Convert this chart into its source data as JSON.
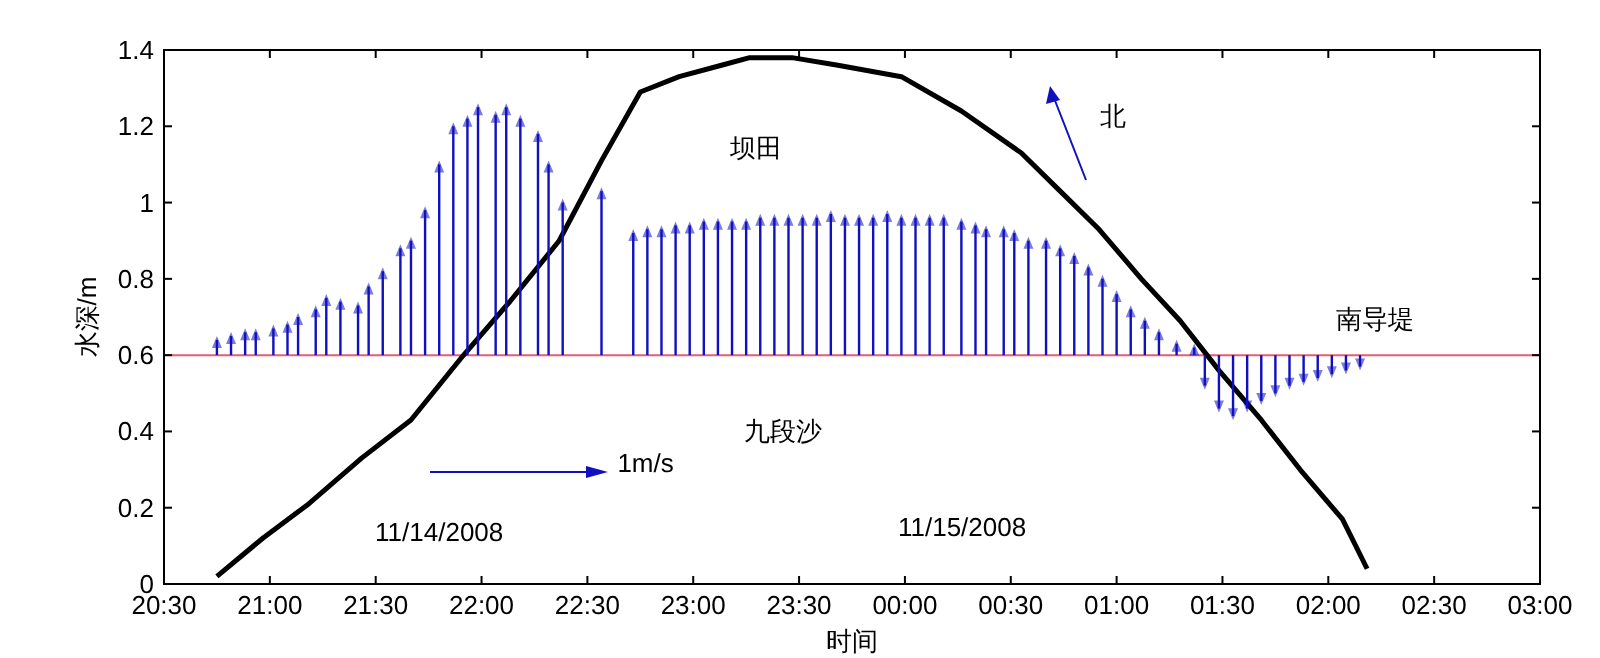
{
  "chart_data": {
    "type": "line",
    "xlabel": "时间",
    "ylabel": "水深/m",
    "xlim": [
      "2008-11-14T20:30",
      "2008-11-15T03:00"
    ],
    "ylim": [
      0,
      1.4
    ],
    "xticks": [
      {
        "value": "2008-11-14T20:30",
        "label": "20:30"
      },
      {
        "value": "2008-11-14T21:00",
        "label": "21:00"
      },
      {
        "value": "2008-11-14T21:30",
        "label": "21:30"
      },
      {
        "value": "2008-11-14T22:00",
        "label": "22:00"
      },
      {
        "value": "2008-11-14T22:30",
        "label": "22:30"
      },
      {
        "value": "2008-11-14T23:00",
        "label": "23:00"
      },
      {
        "value": "2008-11-14T23:30",
        "label": "23:30"
      },
      {
        "value": "2008-11-15T00:00",
        "label": "00:00"
      },
      {
        "value": "2008-11-15T00:30",
        "label": "00:30"
      },
      {
        "value": "2008-11-15T01:00",
        "label": "01:00"
      },
      {
        "value": "2008-11-15T01:30",
        "label": "01:30"
      },
      {
        "value": "2008-11-15T02:00",
        "label": "02:00"
      },
      {
        "value": "2008-11-15T02:30",
        "label": "02:30"
      },
      {
        "value": "2008-11-15T03:00",
        "label": "03:00"
      }
    ],
    "yticks": [
      0,
      0.2,
      0.4,
      0.6,
      0.8,
      1,
      1.2,
      1.4
    ],
    "grid": false,
    "marker": "none",
    "line_style": "solid",
    "ref_lines": [
      {
        "axis": "y",
        "value": 0.6,
        "color": "#e06070"
      }
    ],
    "annotations": [
      "坝田",
      "九段沙",
      "南导堤",
      "北",
      "1m/s",
      "11/14/2008",
      "11/15/2008"
    ],
    "series": [
      {
        "color": "#000000",
        "x": [
          "2008-11-14T20:45",
          "2008-11-14T20:58",
          "2008-11-14T21:11",
          "2008-11-14T21:26",
          "2008-11-14T21:40",
          "2008-11-14T21:54",
          "2008-11-14T22:08",
          "2008-11-14T22:22",
          "2008-11-14T22:34",
          "2008-11-14T22:45",
          "2008-11-14T22:56",
          "2008-11-14T23:08",
          "2008-11-14T23:16",
          "2008-11-14T23:28",
          "2008-11-14T23:41",
          "2008-11-14T23:59",
          "2008-11-15T00:16",
          "2008-11-15T00:33",
          "2008-11-15T00:44",
          "2008-11-15T00:55",
          "2008-11-15T01:07",
          "2008-11-15T01:18",
          "2008-11-15T01:29",
          "2008-11-15T01:41",
          "2008-11-15T01:52",
          "2008-11-15T02:04",
          "2008-11-15T02:11"
        ],
        "values": [
          0.02,
          0.12,
          0.21,
          0.33,
          0.43,
          0.59,
          0.74,
          0.9,
          1.11,
          1.29,
          1.33,
          1.36,
          1.38,
          1.38,
          1.36,
          1.33,
          1.24,
          1.13,
          1.03,
          0.93,
          0.8,
          0.69,
          0.56,
          0.43,
          0.3,
          0.17,
          0.04
        ]
      },
      {
        "type": "bar",
        "color": "#1010c0",
        "x": [
          "2008-11-14T20:45",
          "2008-11-14T20:49",
          "2008-11-14T20:53",
          "2008-11-14T20:56",
          "2008-11-14T21:01",
          "2008-11-14T21:05",
          "2008-11-14T21:08",
          "2008-11-14T21:13",
          "2008-11-14T21:16",
          "2008-11-14T21:20",
          "2008-11-14T21:25",
          "2008-11-14T21:28",
          "2008-11-14T21:32",
          "2008-11-14T21:37",
          "2008-11-14T21:40",
          "2008-11-14T21:44",
          "2008-11-14T21:48",
          "2008-11-14T21:52",
          "2008-11-14T21:56",
          "2008-11-14T21:59",
          "2008-11-14T22:04",
          "2008-11-14T22:07",
          "2008-11-14T22:11",
          "2008-11-14T22:16",
          "2008-11-14T22:19",
          "2008-11-14T22:23",
          "2008-11-14T22:34",
          "2008-11-14T22:43",
          "2008-11-14T22:47",
          "2008-11-14T22:51",
          "2008-11-14T22:55",
          "2008-11-14T22:59",
          "2008-11-14T23:03",
          "2008-11-14T23:07",
          "2008-11-14T23:11",
          "2008-11-14T23:15",
          "2008-11-14T23:19",
          "2008-11-14T23:23",
          "2008-11-14T23:27",
          "2008-11-14T23:31",
          "2008-11-14T23:35",
          "2008-11-14T23:39",
          "2008-11-14T23:43",
          "2008-11-14T23:47",
          "2008-11-14T23:51",
          "2008-11-14T23:55",
          "2008-11-14T23:59",
          "2008-11-15T00:03",
          "2008-11-15T00:07",
          "2008-11-15T00:11",
          "2008-11-15T00:16",
          "2008-11-15T00:20",
          "2008-11-15T00:23",
          "2008-11-15T00:28",
          "2008-11-15T00:31",
          "2008-11-15T00:35",
          "2008-11-15T00:40",
          "2008-11-15T00:44",
          "2008-11-15T00:48",
          "2008-11-15T00:52",
          "2008-11-15T00:56",
          "2008-11-15T01:00",
          "2008-11-15T01:04",
          "2008-11-15T01:08",
          "2008-11-15T01:12",
          "2008-11-15T01:17",
          "2008-11-15T01:22",
          "2008-11-15T01:25",
          "2008-11-15T01:29",
          "2008-11-15T01:33",
          "2008-11-15T01:37",
          "2008-11-15T01:41",
          "2008-11-15T01:45",
          "2008-11-15T01:49",
          "2008-11-15T01:53",
          "2008-11-15T01:57",
          "2008-11-15T02:01",
          "2008-11-15T02:05",
          "2008-11-15T02:09"
        ],
        "base": [
          0.6,
          0.6,
          0.6,
          0.6,
          0.6,
          0.6,
          0.6,
          0.6,
          0.6,
          0.6,
          0.6,
          0.6,
          0.6,
          0.6,
          0.6,
          0.6,
          0.6,
          0.6,
          0.6,
          0.6,
          0.6,
          0.6,
          0.6,
          0.6,
          0.6,
          0.6,
          0.6,
          0.6,
          0.6,
          0.6,
          0.6,
          0.6,
          0.6,
          0.6,
          0.6,
          0.6,
          0.6,
          0.6,
          0.6,
          0.6,
          0.6,
          0.6,
          0.6,
          0.6,
          0.6,
          0.6,
          0.6,
          0.6,
          0.6,
          0.6,
          0.6,
          0.6,
          0.6,
          0.6,
          0.6,
          0.6,
          0.6,
          0.6,
          0.6,
          0.6,
          0.6,
          0.6,
          0.6,
          0.6,
          0.6,
          0.6,
          0.6,
          0.6,
          0.6,
          0.6,
          0.6,
          0.6,
          0.6,
          0.6,
          0.6,
          0.6,
          0.6,
          0.6,
          0.6
        ],
        "values": [
          0.04,
          0.05,
          0.06,
          0.06,
          0.07,
          0.08,
          0.1,
          0.12,
          0.15,
          0.14,
          0.13,
          0.18,
          0.22,
          0.28,
          0.3,
          0.38,
          0.5,
          0.6,
          0.62,
          0.65,
          0.63,
          0.65,
          0.62,
          0.58,
          0.5,
          0.4,
          0.43,
          0.32,
          0.33,
          0.33,
          0.34,
          0.34,
          0.35,
          0.35,
          0.35,
          0.35,
          0.36,
          0.36,
          0.36,
          0.36,
          0.36,
          0.37,
          0.36,
          0.36,
          0.36,
          0.37,
          0.36,
          0.36,
          0.36,
          0.36,
          0.35,
          0.34,
          0.33,
          0.33,
          0.32,
          0.3,
          0.3,
          0.28,
          0.26,
          0.23,
          0.2,
          0.16,
          0.12,
          0.09,
          0.06,
          0.03,
          0.02,
          -0.08,
          -0.14,
          -0.16,
          -0.14,
          -0.12,
          -0.1,
          -0.08,
          -0.07,
          -0.06,
          -0.05,
          -0.04,
          -0.03
        ]
      }
    ]
  }
}
